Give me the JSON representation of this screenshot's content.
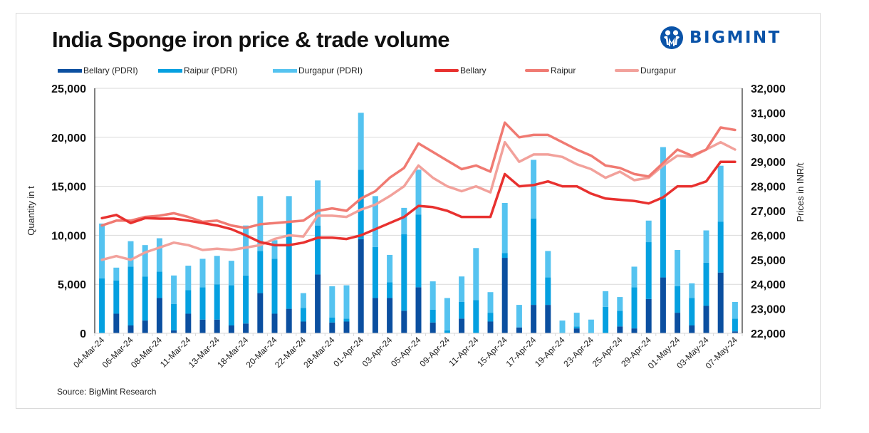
{
  "title": "India Sponge iron price & trade volume",
  "logo": {
    "text": "BIGMINT",
    "icon": "bigmint-people-logo-icon",
    "color": "#0a53a8"
  },
  "source": "Source: BigMint Research",
  "legend": [
    {
      "label": "Bellary (PDRI)",
      "type": "bar",
      "color": "#0b4fa0"
    },
    {
      "label": "Raipur (PDRI)",
      "type": "bar",
      "color": "#05a0e0"
    },
    {
      "label": "Durgapur (PDRI)",
      "type": "bar",
      "color": "#55c3f0"
    },
    {
      "label": "Bellary",
      "type": "line",
      "color": "#e8312f"
    },
    {
      "label": "Raipur",
      "type": "line",
      "color": "#f07a72"
    },
    {
      "label": "Durgapur",
      "type": "line",
      "color": "#f2a19b"
    }
  ],
  "chart_data": {
    "type": "bar",
    "title": "India Sponge iron price & trade volume",
    "xlabel": "",
    "ylabel": "Quantity in t",
    "y2label": "Prices in INR/t",
    "ylim": [
      0,
      25000
    ],
    "y2lim": [
      22000,
      32000
    ],
    "yticks": [
      "0",
      "5,000",
      "10,000",
      "15,000",
      "20,000",
      "25,000"
    ],
    "y2ticks": [
      "22,000",
      "23,000",
      "24,000",
      "25,000",
      "26,000",
      "27,000",
      "28,000",
      "29,000",
      "30,000",
      "31,000",
      "32,000"
    ],
    "grid": true,
    "legend_position": "top",
    "x_tick_labels": [
      "04-Mar-24",
      "06-Mar-24",
      "08-Mar-24",
      "11-Mar-24",
      "13-Mar-24",
      "18-Mar-24",
      "20-Mar-24",
      "22-Mar-24",
      "28-Mar-24",
      "01-Apr-24",
      "03-Apr-24",
      "05-Apr-24",
      "09-Apr-24",
      "11-Apr-24",
      "15-Apr-24",
      "17-Apr-24",
      "19-Apr-24",
      "23-Apr-24",
      "25-Apr-24",
      "29-Apr-24",
      "01-May-24",
      "03-May-24",
      "07-May-24"
    ],
    "tick_every": 2,
    "n_categories": 45,
    "bar_series": [
      {
        "name": "Bellary (PDRI)",
        "color": "#0b4fa0",
        "stacked": true,
        "values": [
          0,
          2000,
          800,
          1300,
          3600,
          300,
          2000,
          1400,
          1400,
          800,
          1000,
          4100,
          2000,
          2500,
          1200,
          6000,
          1100,
          1200,
          9600,
          3600,
          3600,
          2300,
          4700,
          1100,
          0,
          1500,
          0,
          1200,
          7700,
          600,
          2900,
          2900,
          0,
          500,
          0,
          0,
          700,
          500,
          3500,
          5700,
          2100,
          800,
          2800,
          6200,
          200
        ]
      },
      {
        "name": "Raipur (PDRI)",
        "color": "#05a0e0",
        "stacked": true,
        "values": [
          5600,
          3400,
          6000,
          4500,
          2700,
          2700,
          2400,
          3300,
          3600,
          4100,
          4900,
          4300,
          5600,
          8800,
          1400,
          5000,
          500,
          300,
          7100,
          5200,
          1600,
          7800,
          7400,
          1300,
          300,
          1700,
          3400,
          900,
          500,
          0,
          8800,
          2800,
          0,
          200,
          0,
          2700,
          1600,
          4200,
          5800,
          8000,
          2700,
          2800,
          4400,
          5200,
          1300
        ]
      },
      {
        "name": "Durgapur (PDRI)",
        "color": "#55c3f0",
        "stacked": true,
        "values": [
          5600,
          1300,
          2600,
          3200,
          3400,
          2900,
          2500,
          2900,
          2900,
          2500,
          5100,
          5600,
          1900,
          2700,
          1500,
          4600,
          3200,
          3400,
          5800,
          5200,
          2800,
          2700,
          4600,
          2900,
          3300,
          2600,
          5300,
          2100,
          5100,
          2300,
          6000,
          2700,
          1300,
          1400,
          1400,
          1600,
          1400,
          2100,
          2200,
          5300,
          3700,
          1500,
          3300,
          5700,
          1700
        ]
      }
    ],
    "line_series": [
      {
        "name": "Bellary",
        "axis": "right",
        "color": "#e8312f",
        "values": [
          26700,
          26830,
          26500,
          26700,
          26680,
          26680,
          26600,
          26500,
          26400,
          26250,
          26000,
          25720,
          25600,
          25600,
          25700,
          25900,
          25900,
          25850,
          26000,
          26250,
          26500,
          26750,
          27200,
          27150,
          27000,
          26750,
          26750,
          26750,
          28500,
          28000,
          28050,
          28200,
          28000,
          28000,
          27700,
          27500,
          27450,
          27400,
          27300,
          27550,
          28000,
          28000,
          28200,
          29000,
          29000
        ]
      },
      {
        "name": "Raipur",
        "axis": "right",
        "color": "#f07a72",
        "values": [
          26400,
          26600,
          26600,
          26750,
          26800,
          26900,
          26750,
          26550,
          26600,
          26400,
          26300,
          26450,
          26500,
          26550,
          26600,
          27000,
          27100,
          27000,
          27500,
          27800,
          28350,
          28750,
          29750,
          29400,
          29050,
          28700,
          28850,
          28600,
          30600,
          30000,
          30100,
          30100,
          29800,
          29500,
          29250,
          28850,
          28750,
          28500,
          28400,
          28950,
          29500,
          29250,
          29500,
          30400,
          30300
        ]
      },
      {
        "name": "Durgapur",
        "axis": "right",
        "color": "#f2a19b",
        "values": [
          25000,
          25150,
          25000,
          25300,
          25500,
          25700,
          25600,
          25400,
          25450,
          25400,
          25500,
          25600,
          25850,
          26000,
          25950,
          26800,
          26800,
          26750,
          27050,
          27250,
          27600,
          28000,
          28850,
          28350,
          28000,
          27800,
          28000,
          27750,
          29800,
          29000,
          29300,
          29300,
          29200,
          28900,
          28700,
          28350,
          28600,
          28250,
          28350,
          28850,
          29250,
          29200,
          29500,
          29800,
          29500
        ]
      }
    ]
  }
}
